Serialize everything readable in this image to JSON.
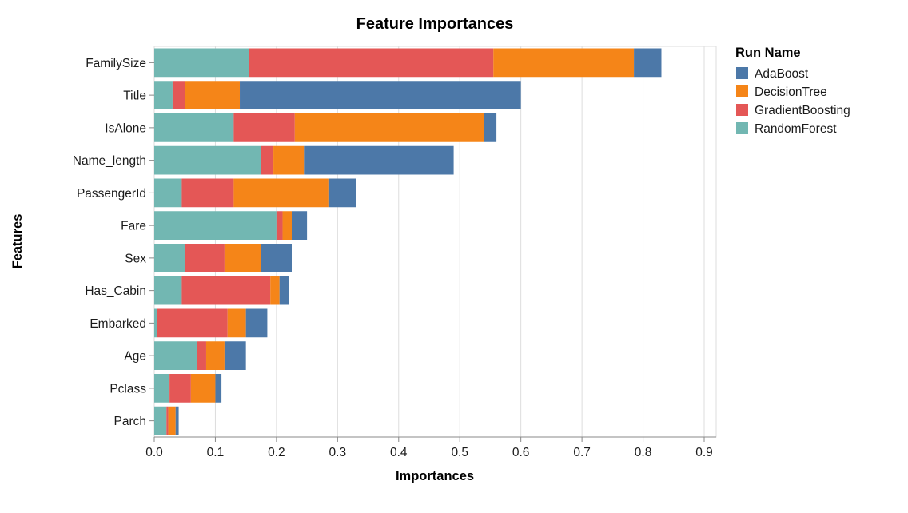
{
  "chart_data": {
    "type": "bar",
    "orientation": "horizontal",
    "stacked": true,
    "title": "Feature Importances",
    "xlabel": "Importances",
    "ylabel": "Features",
    "xlim": [
      0,
      0.9
    ],
    "xticks": [
      0,
      0.1,
      0.2,
      0.3,
      0.4,
      0.5,
      0.6,
      0.7,
      0.8,
      0.9
    ],
    "xtick_labels": [
      "0.0",
      "0.1",
      "0.2",
      "0.3",
      "0.4",
      "0.5",
      "0.6",
      "0.7",
      "0.8",
      "0.9"
    ],
    "grid": true,
    "categories": [
      "FamilySize",
      "Title",
      "IsAlone",
      "Name_length",
      "PassengerId",
      "Fare",
      "Sex",
      "Has_Cabin",
      "Embarked",
      "Age",
      "Pclass",
      "Parch"
    ],
    "series": [
      {
        "name": "RandomForest",
        "color": "#72b7b2",
        "values": [
          0.155,
          0.03,
          0.13,
          0.175,
          0.045,
          0.2,
          0.05,
          0.045,
          0.005,
          0.07,
          0.025,
          0.02
        ]
      },
      {
        "name": "GradientBoosting",
        "color": "#e45756",
        "values": [
          0.4,
          0.02,
          0.1,
          0.02,
          0.085,
          0.01,
          0.065,
          0.145,
          0.115,
          0.015,
          0.035,
          0.003
        ]
      },
      {
        "name": "DecisionTree",
        "color": "#f58518",
        "values": [
          0.23,
          0.09,
          0.31,
          0.05,
          0.155,
          0.015,
          0.06,
          0.015,
          0.03,
          0.03,
          0.04,
          0.012
        ]
      },
      {
        "name": "AdaBoost",
        "color": "#4c78a8",
        "values": [
          0.045,
          0.46,
          0.02,
          0.245,
          0.045,
          0.025,
          0.05,
          0.015,
          0.035,
          0.035,
          0.01,
          0.005
        ]
      }
    ],
    "legend": {
      "title": "Run Name",
      "position": "right",
      "entries": [
        {
          "label": "AdaBoost",
          "color": "#4c78a8"
        },
        {
          "label": "DecisionTree",
          "color": "#f58518"
        },
        {
          "label": "GradientBoosting",
          "color": "#e45756"
        },
        {
          "label": "RandomForest",
          "color": "#72b7b2"
        }
      ]
    },
    "colors": {
      "gridline": "#dddddd",
      "axis_line": "#888888",
      "view_border": "#dddddd"
    }
  }
}
